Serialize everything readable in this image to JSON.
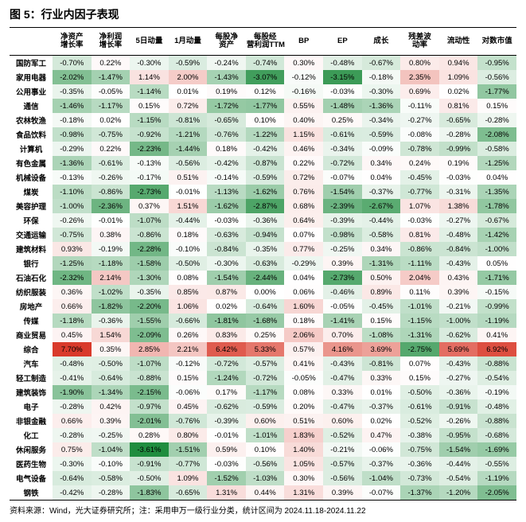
{
  "title": "图 5：行业内因子表现",
  "footnote": "资料来源：Wind，光大证券研究所；注：采用申万一级行业分类，统计区间为 2024.11.18-2024.11.22",
  "columns": [
    "净资产增长率",
    "净利润增长率",
    "5日动量",
    "1月动量",
    "每股净资产",
    "每股经营利润TTM",
    "BP",
    "EP",
    "成长",
    "残差波动率",
    "流动性",
    "对数市值"
  ],
  "row_labels": [
    "国防军工",
    "家用电器",
    "公用事业",
    "通信",
    "农林牧渔",
    "食品饮料",
    "计算机",
    "有色金属",
    "机械设备",
    "煤炭",
    "美容护理",
    "环保",
    "交通运输",
    "建筑材料",
    "银行",
    "石油石化",
    "纺织服装",
    "房地产",
    "传媒",
    "商业贸易",
    "综合",
    "汽车",
    "轻工制造",
    "建筑装饰",
    "电子",
    "非银金融",
    "化工",
    "休闲服务",
    "医药生物",
    "电气设备",
    "钢铁"
  ],
  "data": [
    [
      "-0.70%",
      "0.22%",
      "-0.30%",
      "-0.59%",
      "-0.24%",
      "-0.74%",
      "0.30%",
      "-0.48%",
      "-0.67%",
      "0.80%",
      "0.94%",
      "-0.95%"
    ],
    [
      "-2.02%",
      "-1.47%",
      "1.14%",
      "2.00%",
      "-1.43%",
      "-3.07%",
      "-0.12%",
      "-3.15%",
      "-0.18%",
      "2.35%",
      "1.09%",
      "-0.56%"
    ],
    [
      "-0.35%",
      "-0.05%",
      "-1.14%",
      "0.01%",
      "0.19%",
      "0.12%",
      "-0.16%",
      "-0.03%",
      "-0.30%",
      "0.69%",
      "0.02%",
      "-1.77%"
    ],
    [
      "-1.46%",
      "-1.17%",
      "0.15%",
      "0.72%",
      "-1.72%",
      "-1.77%",
      "0.55%",
      "-1.48%",
      "-1.36%",
      "-0.11%",
      "0.81%",
      "0.15%"
    ],
    [
      "-0.18%",
      "0.02%",
      "-1.15%",
      "-0.81%",
      "-0.65%",
      "0.10%",
      "0.40%",
      "0.25%",
      "-0.34%",
      "-0.27%",
      "-0.65%",
      "-0.28%"
    ],
    [
      "-0.98%",
      "-0.75%",
      "-0.92%",
      "-1.21%",
      "-0.76%",
      "-1.22%",
      "1.15%",
      "-0.61%",
      "-0.59%",
      "-0.08%",
      "-0.28%",
      "-2.08%"
    ],
    [
      "-0.29%",
      "0.22%",
      "-2.23%",
      "-1.44%",
      "0.18%",
      "-0.42%",
      "0.46%",
      "-0.34%",
      "-0.09%",
      "-0.78%",
      "-0.99%",
      "-0.58%"
    ],
    [
      "-1.36%",
      "-0.61%",
      "-0.13%",
      "-0.56%",
      "-0.42%",
      "-0.87%",
      "0.22%",
      "-0.72%",
      "0.34%",
      "0.24%",
      "0.19%",
      "-1.25%"
    ],
    [
      "-0.13%",
      "-0.26%",
      "-0.17%",
      "0.51%",
      "-0.14%",
      "-0.59%",
      "0.72%",
      "-0.07%",
      "0.04%",
      "-0.45%",
      "-0.03%",
      "0.04%"
    ],
    [
      "-1.10%",
      "-0.86%",
      "-2.73%",
      "-0.01%",
      "-1.13%",
      "-1.62%",
      "0.76%",
      "-1.54%",
      "-0.37%",
      "-0.77%",
      "-0.31%",
      "-1.35%"
    ],
    [
      "-1.00%",
      "-2.36%",
      "0.37%",
      "1.51%",
      "-1.62%",
      "-2.87%",
      "0.68%",
      "-2.39%",
      "-2.67%",
      "1.07%",
      "1.38%",
      "-1.78%"
    ],
    [
      "-0.26%",
      "-0.01%",
      "-1.07%",
      "-0.44%",
      "-0.03%",
      "-0.36%",
      "0.64%",
      "-0.39%",
      "-0.44%",
      "-0.03%",
      "-0.27%",
      "-0.67%"
    ],
    [
      "-0.75%",
      "0.38%",
      "-0.86%",
      "0.18%",
      "-0.63%",
      "-0.94%",
      "0.07%",
      "-0.98%",
      "-0.58%",
      "0.81%",
      "-0.48%",
      "-1.42%"
    ],
    [
      "0.93%",
      "-0.19%",
      "-2.28%",
      "-0.10%",
      "-0.84%",
      "-0.35%",
      "0.77%",
      "-0.25%",
      "0.34%",
      "-0.86%",
      "-0.84%",
      "-1.00%"
    ],
    [
      "-1.25%",
      "-1.18%",
      "-1.58%",
      "-0.50%",
      "-0.30%",
      "-0.63%",
      "-0.29%",
      "0.39%",
      "-1.31%",
      "-1.11%",
      "-0.43%",
      "0.05%"
    ],
    [
      "-2.32%",
      "2.14%",
      "-1.30%",
      "0.08%",
      "-1.54%",
      "-2.44%",
      "0.04%",
      "-2.73%",
      "0.50%",
      "2.04%",
      "0.43%",
      "-1.71%"
    ],
    [
      "0.36%",
      "-1.02%",
      "-0.35%",
      "0.85%",
      "0.87%",
      "0.00%",
      "0.06%",
      "-0.46%",
      "0.89%",
      "0.11%",
      "0.39%",
      "-0.15%"
    ],
    [
      "0.66%",
      "-1.82%",
      "-2.20%",
      "1.06%",
      "0.02%",
      "-0.64%",
      "1.60%",
      "-0.05%",
      "-0.45%",
      "-1.01%",
      "-0.21%",
      "-0.99%"
    ],
    [
      "-1.18%",
      "-0.36%",
      "-1.55%",
      "-0.66%",
      "-1.81%",
      "-1.68%",
      "0.18%",
      "-1.41%",
      "0.15%",
      "-1.15%",
      "-1.00%",
      "-1.19%"
    ],
    [
      "0.45%",
      "1.54%",
      "-2.09%",
      "0.26%",
      "0.83%",
      "0.25%",
      "2.06%",
      "0.70%",
      "-1.08%",
      "-1.31%",
      "-0.62%",
      "0.41%"
    ],
    [
      "7.70%",
      "0.35%",
      "2.85%",
      "2.21%",
      "6.42%",
      "5.33%",
      "0.57%",
      "4.16%",
      "3.69%",
      "-2.75%",
      "5.69%",
      "6.92%"
    ],
    [
      "-0.48%",
      "-0.50%",
      "-1.07%",
      "-0.12%",
      "-0.72%",
      "-0.57%",
      "0.41%",
      "-0.43%",
      "-0.81%",
      "0.07%",
      "-0.43%",
      "-0.88%"
    ],
    [
      "-0.41%",
      "-0.64%",
      "-0.88%",
      "0.15%",
      "-1.24%",
      "-0.72%",
      "-0.05%",
      "-0.47%",
      "0.33%",
      "0.15%",
      "-0.27%",
      "-0.54%"
    ],
    [
      "-1.90%",
      "-1.34%",
      "-2.15%",
      "-0.06%",
      "0.17%",
      "-1.17%",
      "0.08%",
      "0.33%",
      "0.01%",
      "-0.50%",
      "-0.36%",
      "-0.19%"
    ],
    [
      "-0.28%",
      "0.42%",
      "-0.97%",
      "0.45%",
      "-0.62%",
      "-0.59%",
      "0.20%",
      "-0.47%",
      "-0.37%",
      "-0.61%",
      "-0.91%",
      "-0.48%"
    ],
    [
      "0.66%",
      "0.39%",
      "-2.01%",
      "-0.76%",
      "-0.39%",
      "0.60%",
      "0.51%",
      "0.60%",
      "0.02%",
      "-0.52%",
      "-0.26%",
      "-0.88%"
    ],
    [
      "-0.28%",
      "-0.25%",
      "0.28%",
      "0.80%",
      "-0.01%",
      "-1.01%",
      "1.83%",
      "-0.52%",
      "0.47%",
      "-0.38%",
      "-0.95%",
      "-0.68%"
    ],
    [
      "0.75%",
      "-1.04%",
      "-3.61%",
      "-1.51%",
      "0.59%",
      "0.10%",
      "1.40%",
      "-0.21%",
      "-0.06%",
      "-0.75%",
      "-1.54%",
      "-1.69%"
    ],
    [
      "-0.30%",
      "-0.10%",
      "-0.91%",
      "-0.77%",
      "-0.03%",
      "-0.56%",
      "1.05%",
      "-0.57%",
      "-0.37%",
      "-0.36%",
      "-0.44%",
      "-0.55%"
    ],
    [
      "-0.64%",
      "-0.58%",
      "-0.50%",
      "1.09%",
      "-1.52%",
      "-1.03%",
      "0.30%",
      "-0.56%",
      "-1.04%",
      "-0.73%",
      "-0.54%",
      "-1.19%"
    ],
    [
      "-0.42%",
      "-0.28%",
      "-1.83%",
      "-0.65%",
      "1.31%",
      "0.44%",
      "1.31%",
      "0.39%",
      "-0.07%",
      "-1.37%",
      "-1.20%",
      "-2.05%"
    ]
  ],
  "style": {
    "title_fontsize": 14,
    "cell_fontsize": 9.5,
    "footnote_fontsize": 10,
    "border_color": "#000000",
    "color_scale": {
      "min": -3.7,
      "min_color": "#1a8a3a",
      "mid": 0.0,
      "mid_color": "#ffffff",
      "max": 7.7,
      "max_color": "#d93a2b"
    }
  }
}
